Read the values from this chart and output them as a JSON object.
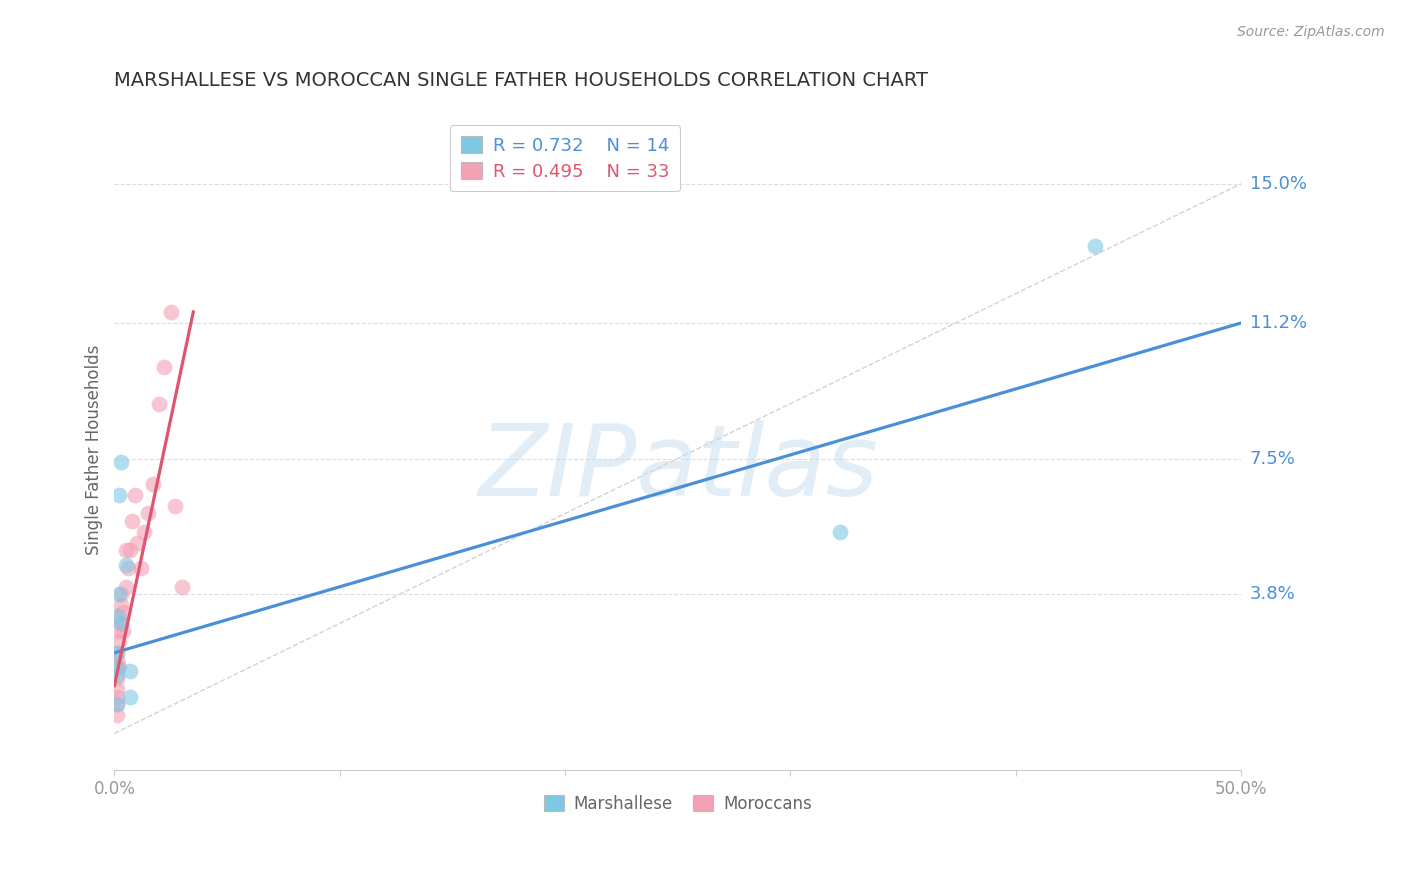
{
  "title": "MARSHALLESE VS MOROCCAN SINGLE FATHER HOUSEHOLDS CORRELATION CHART",
  "source": "Source: ZipAtlas.com",
  "ylabel": "Single Father Households",
  "xlim": [
    0.0,
    0.5
  ],
  "ylim": [
    -0.01,
    0.165
  ],
  "ytick_labels": [
    "15.0%",
    "11.2%",
    "7.5%",
    "3.8%"
  ],
  "ytick_values": [
    0.15,
    0.112,
    0.075,
    0.038
  ],
  "marshallese_x": [
    0.001,
    0.001,
    0.001,
    0.001,
    0.001,
    0.002,
    0.002,
    0.003,
    0.003,
    0.005,
    0.322,
    0.435,
    0.007,
    0.007
  ],
  "marshallese_y": [
    0.022,
    0.032,
    0.018,
    0.016,
    0.008,
    0.065,
    0.038,
    0.074,
    0.03,
    0.046,
    0.055,
    0.133,
    0.017,
    0.01
  ],
  "moroccan_x": [
    0.001,
    0.001,
    0.001,
    0.001,
    0.001,
    0.001,
    0.001,
    0.001,
    0.002,
    0.002,
    0.002,
    0.002,
    0.003,
    0.003,
    0.003,
    0.004,
    0.004,
    0.005,
    0.005,
    0.006,
    0.007,
    0.008,
    0.009,
    0.01,
    0.012,
    0.013,
    0.015,
    0.017,
    0.02,
    0.022,
    0.025,
    0.027,
    0.03
  ],
  "moroccan_y": [
    0.005,
    0.008,
    0.01,
    0.012,
    0.015,
    0.018,
    0.02,
    0.022,
    0.018,
    0.025,
    0.028,
    0.032,
    0.03,
    0.035,
    0.038,
    0.028,
    0.033,
    0.04,
    0.05,
    0.045,
    0.05,
    0.058,
    0.065,
    0.052,
    0.045,
    0.055,
    0.06,
    0.068,
    0.09,
    0.1,
    0.115,
    0.062,
    0.04
  ],
  "blue_scatter_color": "#7ec8e3",
  "pink_scatter_color": "#f4a0b5",
  "blue_line_color": "#4a90d9",
  "pink_line_color": "#e0556e",
  "diag_color": "#c8c8c8",
  "blue_line_x0": 0.0,
  "blue_line_x1": 0.5,
  "blue_line_y0": 0.022,
  "blue_line_y1": 0.112,
  "pink_line_x0": 0.0,
  "pink_line_x1": 0.035,
  "pink_line_y0": 0.013,
  "pink_line_y1": 0.115,
  "watermark_text": "ZIPatlas",
  "watermark_color": "#c5dcf0",
  "legend_r_blue": "R = 0.732",
  "legend_n_blue": "N = 14",
  "legend_r_pink": "R = 0.495",
  "legend_n_pink": "N = 33",
  "background_color": "#ffffff",
  "grid_color": "#dddddd",
  "title_color": "#333333",
  "source_color": "#999999",
  "ylabel_color": "#666666",
  "tick_color": "#999999"
}
